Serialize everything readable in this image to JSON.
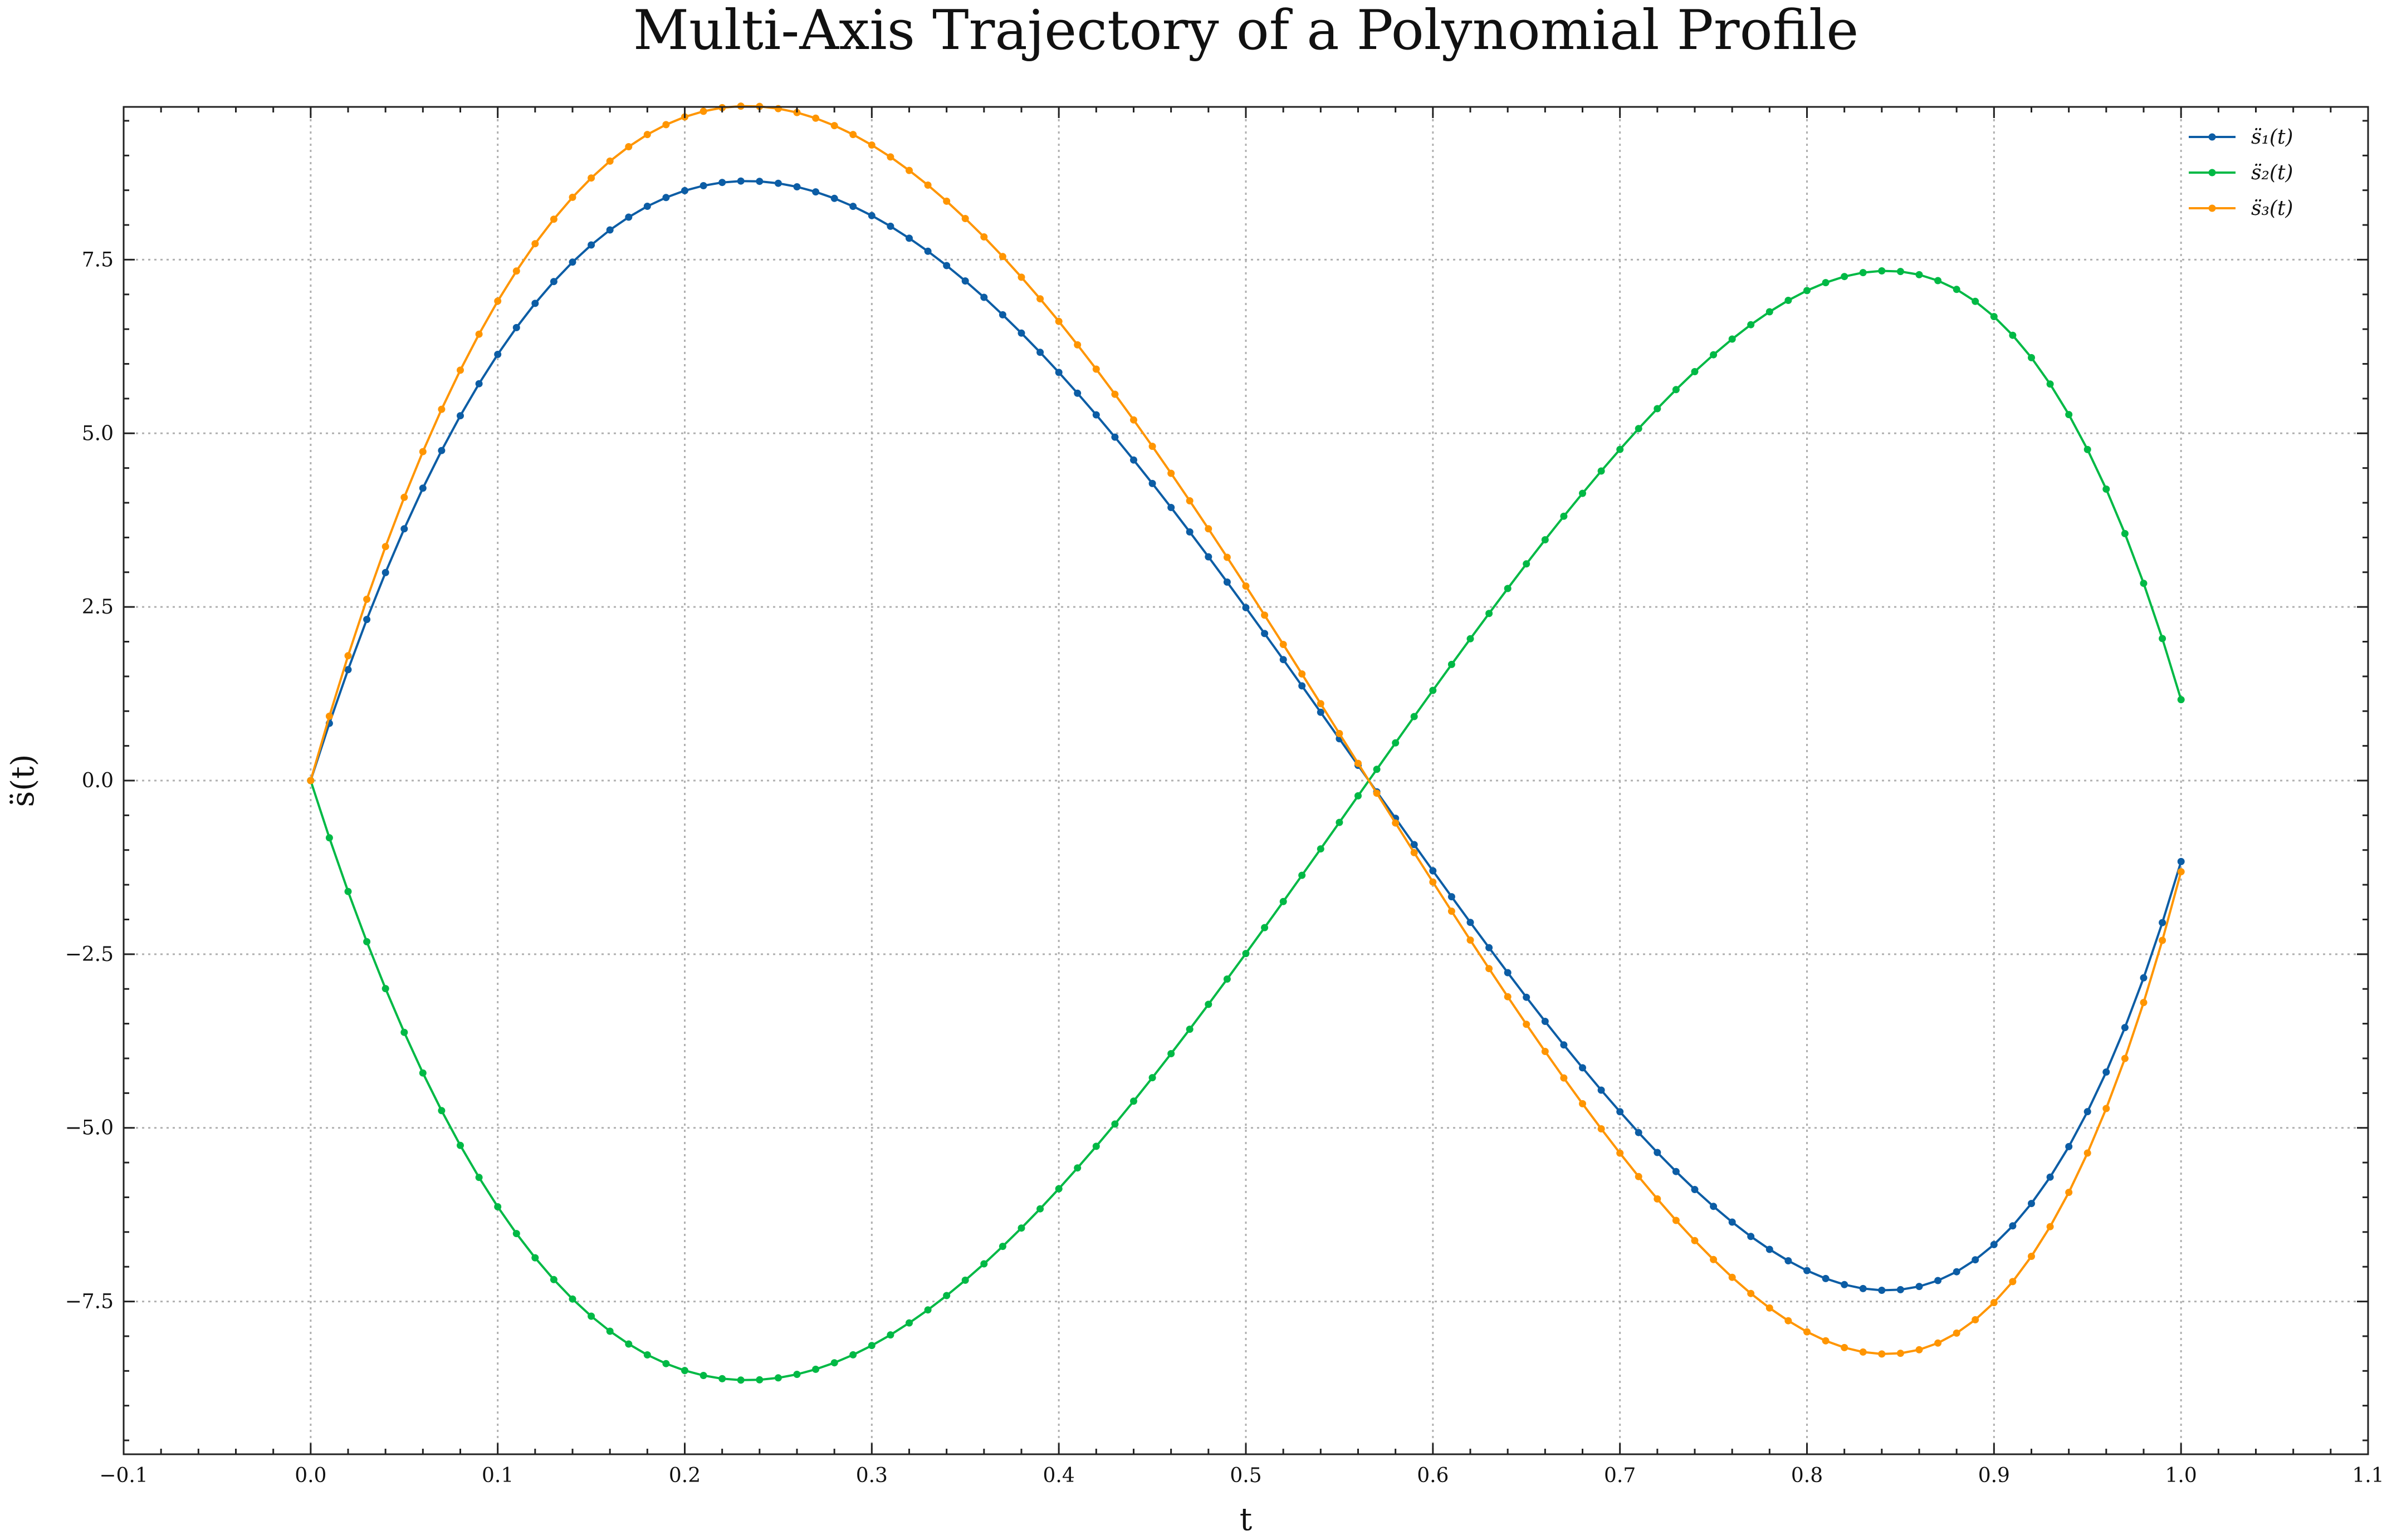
{
  "chart_data": {
    "type": "line",
    "title": "Multi-Axis Trajectory of a Polynomial Profile",
    "xlabel": "t",
    "ylabel": "s̈(t)",
    "xlim": [
      -0.1,
      1.1
    ],
    "ylim": [
      -9.7,
      9.7
    ],
    "xticks": [
      -0.1,
      0.0,
      0.1,
      0.2,
      0.3,
      0.4,
      0.5,
      0.6,
      0.7,
      0.8,
      0.9,
      1.0,
      1.1
    ],
    "xtick_labels": [
      "−0.1",
      "0.0",
      "0.1",
      "0.2",
      "0.3",
      "0.4",
      "0.5",
      "0.6",
      "0.7",
      "0.8",
      "0.9",
      "1.0",
      "1.1"
    ],
    "yticks": [
      -7.5,
      -5.0,
      -2.5,
      0.0,
      2.5,
      5.0,
      7.5
    ],
    "ytick_labels": [
      "−7.5",
      "−5.0",
      "−2.5",
      "0.0",
      "2.5",
      "5.0",
      "7.5"
    ],
    "grid": true,
    "legend_position": "upper-right",
    "x": [
      0.0,
      0.01,
      0.02,
      0.03,
      0.04,
      0.05,
      0.06,
      0.07,
      0.08,
      0.09,
      0.1,
      0.11,
      0.12,
      0.13,
      0.14,
      0.15,
      0.16,
      0.17,
      0.18,
      0.19,
      0.2,
      0.21,
      0.22,
      0.23,
      0.24,
      0.25,
      0.26,
      0.27,
      0.28,
      0.29,
      0.3,
      0.31,
      0.32,
      0.33,
      0.34,
      0.35,
      0.36,
      0.37,
      0.38,
      0.39,
      0.4,
      0.41,
      0.42,
      0.43,
      0.44,
      0.45,
      0.46,
      0.47,
      0.48,
      0.49,
      0.5,
      0.51,
      0.52,
      0.53,
      0.54,
      0.55,
      0.56,
      0.57,
      0.58,
      0.59,
      0.6,
      0.61,
      0.62,
      0.63,
      0.64,
      0.65,
      0.66,
      0.67,
      0.68,
      0.69,
      0.7,
      0.71,
      0.72,
      0.73,
      0.74,
      0.75,
      0.76,
      0.77,
      0.78,
      0.79,
      0.8,
      0.81,
      0.82,
      0.83,
      0.84,
      0.85,
      0.86,
      0.87,
      0.88,
      0.89,
      0.9,
      0.91,
      0.92,
      0.93,
      0.94,
      0.95,
      0.96,
      0.97,
      0.98,
      0.99,
      1.0
    ],
    "series": [
      {
        "name": "s̈₁(t)",
        "color": "#0C5DA5",
        "values": [
          0.0,
          0.824,
          1.597,
          2.32,
          2.995,
          3.625,
          4.21,
          4.752,
          5.253,
          5.714,
          6.137,
          6.522,
          6.871,
          7.185,
          7.465,
          7.712,
          7.928,
          8.113,
          8.269,
          8.395,
          8.494,
          8.566,
          8.612,
          8.632,
          8.628,
          8.6,
          8.55,
          8.477,
          8.383,
          8.268,
          8.134,
          7.981,
          7.809,
          7.621,
          7.415,
          7.194,
          6.958,
          6.707,
          6.443,
          6.166,
          5.877,
          5.577,
          5.266,
          4.945,
          4.616,
          4.278,
          3.932,
          3.58,
          3.222,
          2.858,
          2.49,
          2.117,
          1.742,
          1.364,
          0.984,
          0.602,
          0.22,
          -0.162,
          -0.543,
          -0.922,
          -1.299,
          -1.672,
          -2.042,
          -2.406,
          -2.766,
          -3.12,
          -3.467,
          -3.806,
          -4.136,
          -4.457,
          -4.768,
          -5.068,
          -5.355,
          -5.629,
          -5.888,
          -6.131,
          -6.357,
          -6.564,
          -6.75,
          -6.914,
          -7.055,
          -7.17,
          -7.257,
          -7.314,
          -7.339,
          -7.33,
          -7.284,
          -7.199,
          -7.072,
          -6.9,
          -6.681,
          -6.412,
          -6.089,
          -5.709,
          -5.27,
          -4.767,
          -4.197,
          -3.556,
          -2.84,
          -2.045,
          -1.166
        ]
      },
      {
        "name": "s̈₂(t)",
        "color": "#00B945",
        "values": [
          0.0,
          -0.824,
          -1.597,
          -2.32,
          -2.995,
          -3.625,
          -4.21,
          -4.752,
          -5.253,
          -5.714,
          -6.137,
          -6.522,
          -6.871,
          -7.185,
          -7.465,
          -7.712,
          -7.928,
          -8.113,
          -8.269,
          -8.395,
          -8.494,
          -8.566,
          -8.612,
          -8.632,
          -8.628,
          -8.6,
          -8.55,
          -8.477,
          -8.383,
          -8.268,
          -8.134,
          -7.981,
          -7.809,
          -7.621,
          -7.415,
          -7.194,
          -6.958,
          -6.707,
          -6.443,
          -6.166,
          -5.877,
          -5.577,
          -5.266,
          -4.945,
          -4.616,
          -4.278,
          -3.932,
          -3.58,
          -3.222,
          -2.858,
          -2.49,
          -2.117,
          -1.742,
          -1.364,
          -0.984,
          -0.602,
          -0.22,
          0.162,
          0.543,
          0.922,
          1.299,
          1.672,
          2.042,
          2.406,
          2.766,
          3.12,
          3.467,
          3.806,
          4.136,
          4.457,
          4.768,
          5.068,
          5.355,
          5.629,
          5.888,
          6.131,
          6.357,
          6.564,
          6.75,
          6.914,
          7.055,
          7.17,
          7.257,
          7.314,
          7.339,
          7.33,
          7.284,
          7.199,
          7.072,
          6.9,
          6.681,
          6.412,
          6.089,
          5.709,
          5.27,
          4.767,
          4.197,
          3.556,
          2.84,
          2.045,
          1.166
        ]
      },
      {
        "name": "s̈₃(t)",
        "color": "#FF9500",
        "values": [
          0.0,
          0.927,
          1.797,
          2.61,
          3.369,
          4.078,
          4.736,
          5.346,
          5.909,
          6.428,
          6.904,
          7.337,
          7.73,
          8.083,
          8.398,
          8.676,
          8.919,
          9.127,
          9.302,
          9.444,
          9.556,
          9.637,
          9.689,
          9.711,
          9.707,
          9.675,
          9.619,
          9.537,
          9.431,
          9.302,
          9.151,
          8.979,
          8.785,
          8.574,
          8.342,
          8.093,
          7.828,
          7.545,
          7.248,
          6.937,
          6.612,
          6.274,
          5.924,
          5.563,
          5.193,
          4.813,
          4.424,
          4.028,
          3.625,
          3.215,
          2.801,
          2.382,
          1.96,
          1.535,
          1.107,
          0.677,
          0.248,
          -0.182,
          -0.611,
          -1.037,
          -1.461,
          -1.881,
          -2.297,
          -2.707,
          -3.112,
          -3.51,
          -3.9,
          -4.282,
          -4.653,
          -5.014,
          -5.364,
          -5.702,
          -6.024,
          -6.333,
          -6.624,
          -6.897,
          -7.152,
          -7.385,
          -7.594,
          -7.778,
          -7.937,
          -8.066,
          -8.164,
          -8.228,
          -8.256,
          -8.246,
          -8.195,
          -8.099,
          -7.956,
          -7.763,
          -7.516,
          -7.214,
          -6.85,
          -6.423,
          -5.929,
          -5.363,
          -4.722,
          -4.001,
          -3.195,
          -2.301,
          -1.312
        ]
      }
    ]
  }
}
